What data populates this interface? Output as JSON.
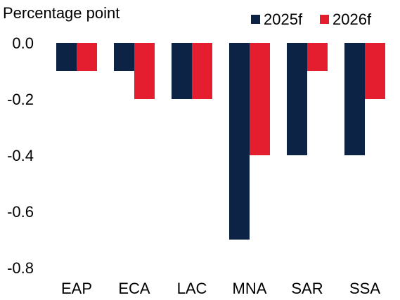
{
  "chart_data": {
    "type": "bar",
    "ylabel": "Percentage point",
    "categories": [
      "EAP",
      "ECA",
      "LAC",
      "MNA",
      "SAR",
      "SSA"
    ],
    "series": [
      {
        "name": "2025f",
        "color": "#0d2346",
        "values": [
          -0.1,
          -0.1,
          -0.2,
          -0.7,
          -0.4,
          -0.4
        ]
      },
      {
        "name": "2026f",
        "color": "#e41e2f",
        "values": [
          -0.1,
          -0.2,
          -0.2,
          -0.4,
          -0.1,
          -0.2
        ]
      }
    ],
    "ylim": [
      -0.8,
      0.0
    ],
    "yticks": [
      "0.0",
      "-0.2",
      "-0.4",
      "-0.6",
      "-0.8"
    ],
    "grid": false,
    "legend_position": "top-right"
  }
}
